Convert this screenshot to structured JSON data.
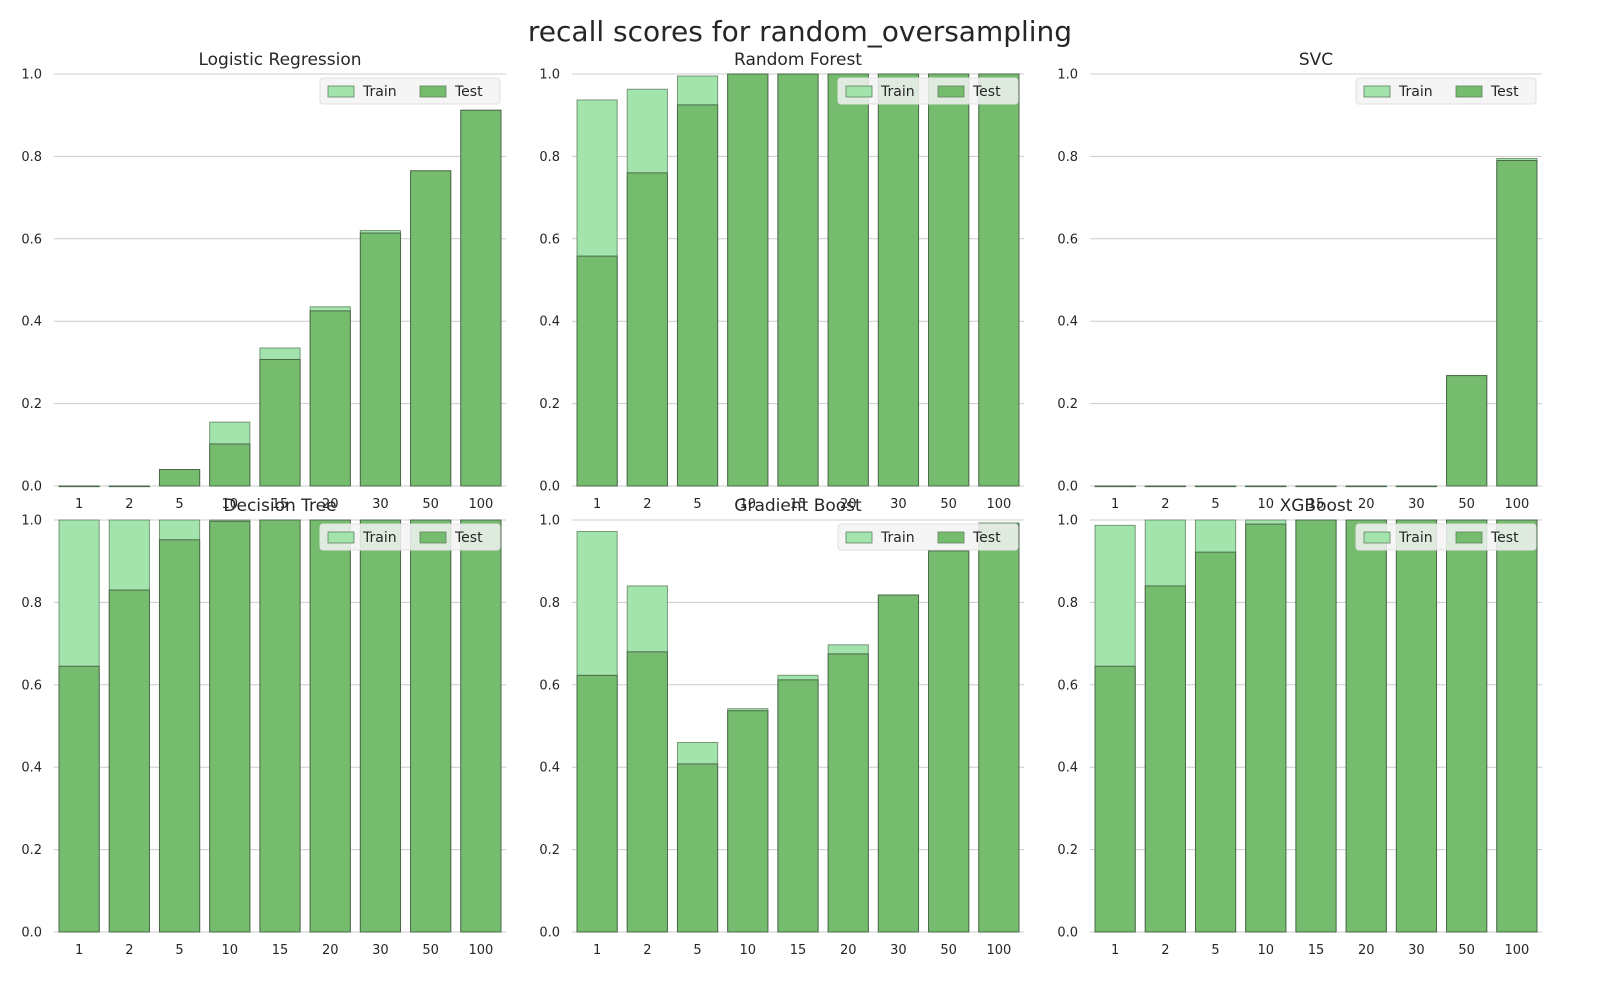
{
  "title": "recall scores for random_oversampling",
  "colors": {
    "train": "#a3e4ad",
    "test": "#76bc6e",
    "grid": "#cccccc",
    "legend_bg": "#f3f3f3"
  },
  "chart_data": [
    {
      "type": "bar",
      "title": "Logistic Regression",
      "categories": [
        "1",
        "2",
        "5",
        "10",
        "15",
        "20",
        "30",
        "50",
        "100"
      ],
      "ylim": [
        0,
        1.0
      ],
      "yticks": [
        "0.0",
        "0.2",
        "0.4",
        "0.6",
        "0.8",
        "1.0"
      ],
      "grid": true,
      "legend": "top-right",
      "series": [
        {
          "name": "Train",
          "values": [
            0.0,
            0.0,
            0.04,
            0.155,
            0.335,
            0.435,
            0.62,
            0.765,
            0.912
          ]
        },
        {
          "name": "Test",
          "values": [
            0.0,
            0.0,
            0.04,
            0.102,
            0.307,
            0.425,
            0.614,
            0.765,
            0.912
          ]
        }
      ]
    },
    {
      "type": "bar",
      "title": "Random Forest",
      "categories": [
        "1",
        "2",
        "5",
        "10",
        "15",
        "20",
        "30",
        "50",
        "100"
      ],
      "ylim": [
        0,
        1.0
      ],
      "yticks": [
        "0.0",
        "0.2",
        "0.4",
        "0.6",
        "0.8",
        "1.0"
      ],
      "grid": true,
      "legend": "top-right",
      "series": [
        {
          "name": "Train",
          "values": [
            0.937,
            0.963,
            0.995,
            1.0,
            1.0,
            1.0,
            1.0,
            1.0,
            1.0
          ]
        },
        {
          "name": "Test",
          "values": [
            0.558,
            0.76,
            0.925,
            1.0,
            1.0,
            1.0,
            1.0,
            1.0,
            1.0
          ]
        }
      ]
    },
    {
      "type": "bar",
      "title": "SVC",
      "categories": [
        "1",
        "2",
        "5",
        "10",
        "15",
        "20",
        "30",
        "50",
        "100"
      ],
      "ylim": [
        0,
        1.0
      ],
      "yticks": [
        "0.0",
        "0.2",
        "0.4",
        "0.6",
        "0.8",
        "1.0"
      ],
      "grid": true,
      "legend": "top-right",
      "series": [
        {
          "name": "Train",
          "values": [
            0.0,
            0.0,
            0.0,
            0.0,
            0.0,
            0.0,
            0.0,
            0.268,
            0.795
          ]
        },
        {
          "name": "Test",
          "values": [
            0.0,
            0.0,
            0.0,
            0.0,
            0.0,
            0.0,
            0.0,
            0.268,
            0.79
          ]
        }
      ]
    },
    {
      "type": "bar",
      "title": "Decision Tree",
      "categories": [
        "1",
        "2",
        "5",
        "10",
        "15",
        "20",
        "30",
        "50",
        "100"
      ],
      "ylim": [
        0,
        1.0
      ],
      "yticks": [
        "0.0",
        "0.2",
        "0.4",
        "0.6",
        "0.8",
        "1.0"
      ],
      "grid": true,
      "legend": "top-right",
      "series": [
        {
          "name": "Train",
          "values": [
            1.0,
            1.0,
            1.0,
            1.0,
            1.0,
            1.0,
            1.0,
            1.0,
            1.0
          ]
        },
        {
          "name": "Test",
          "values": [
            0.645,
            0.83,
            0.952,
            0.997,
            1.0,
            1.0,
            1.0,
            1.0,
            1.0
          ]
        }
      ]
    },
    {
      "type": "bar",
      "title": "Gradient Boost",
      "categories": [
        "1",
        "2",
        "5",
        "10",
        "15",
        "20",
        "30",
        "50",
        "100"
      ],
      "ylim": [
        0,
        1.0
      ],
      "yticks": [
        "0.0",
        "0.2",
        "0.4",
        "0.6",
        "0.8",
        "1.0"
      ],
      "grid": true,
      "legend": "top-right",
      "series": [
        {
          "name": "Train",
          "values": [
            0.972,
            0.84,
            0.46,
            0.542,
            0.623,
            0.697,
            0.818,
            0.925,
            0.993
          ]
        },
        {
          "name": "Test",
          "values": [
            0.623,
            0.68,
            0.408,
            0.537,
            0.612,
            0.675,
            0.818,
            0.925,
            0.99
          ]
        }
      ]
    },
    {
      "type": "bar",
      "title": "XGBoost",
      "categories": [
        "1",
        "2",
        "5",
        "10",
        "15",
        "20",
        "30",
        "50",
        "100"
      ],
      "ylim": [
        0,
        1.0
      ],
      "yticks": [
        "0.0",
        "0.2",
        "0.4",
        "0.6",
        "0.8",
        "1.0"
      ],
      "grid": true,
      "legend": "top-right",
      "series": [
        {
          "name": "Train",
          "values": [
            0.987,
            1.0,
            1.0,
            1.0,
            1.0,
            1.0,
            1.0,
            1.0,
            1.0
          ]
        },
        {
          "name": "Test",
          "values": [
            0.645,
            0.84,
            0.922,
            0.99,
            1.0,
            1.0,
            1.0,
            1.0,
            1.0
          ]
        }
      ]
    }
  ]
}
